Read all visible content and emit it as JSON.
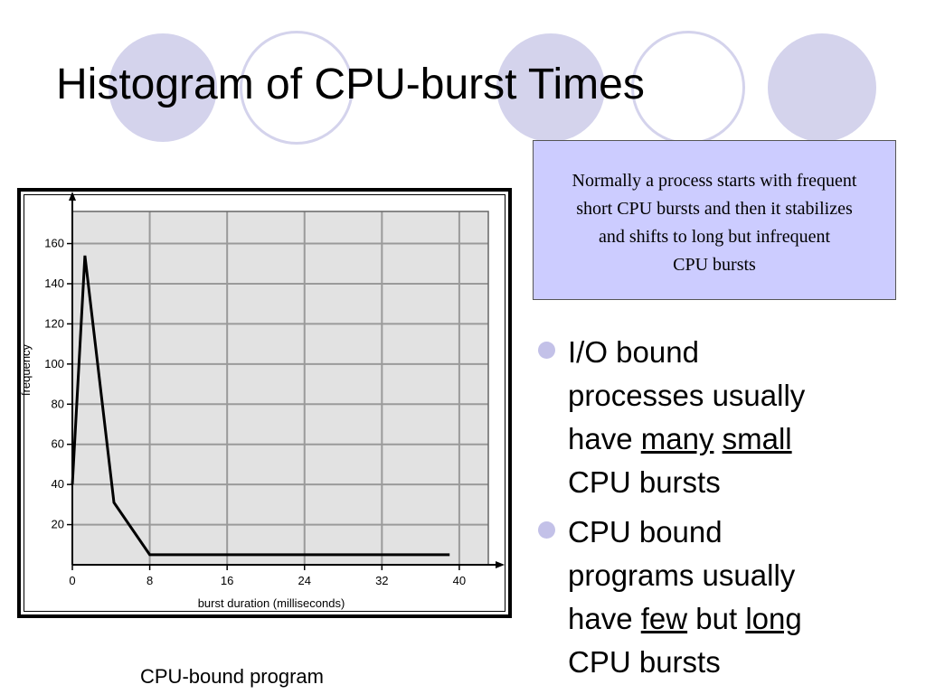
{
  "slide": {
    "title": "Histogram of CPU-burst Times",
    "caption": "CPU-bound program"
  },
  "callout": {
    "lines": [
      "Normally a process starts with frequent",
      "short CPU bursts and then it stabilizes",
      "and shifts to long but infrequent",
      "CPU bursts"
    ]
  },
  "bullets": [
    {
      "line1": "I/O bound",
      "line2": "processes usually",
      "line3_pre": "have",
      "em1": "many",
      "em2": "small",
      "line4": "CPU bursts"
    },
    {
      "line1": "CPU bound",
      "line2": "programs usually",
      "line3_pre": "have",
      "em1": "few",
      "mid": "but",
      "em2": "long",
      "line4": "CPU bursts"
    }
  ],
  "colors": {
    "decor": "#d4d3ec",
    "callout_bg": "#ccccff",
    "plot_bg": "#e2e2e2",
    "bullet": "#c3c1e8"
  },
  "chart_data": {
    "type": "line",
    "xlabel": "burst duration (milliseconds)",
    "ylabel": "frequency",
    "xlim": [
      0,
      43
    ],
    "ylim": [
      0,
      176
    ],
    "x_ticks": [
      0,
      8,
      16,
      24,
      32,
      40
    ],
    "y_ticks": [
      20,
      40,
      60,
      80,
      100,
      120,
      140,
      160
    ],
    "grid": true,
    "series": [
      {
        "points": [
          [
            0,
            40
          ],
          [
            1.3,
            154
          ],
          [
            4.3,
            31
          ],
          [
            8,
            5
          ],
          [
            39,
            5
          ]
        ]
      }
    ]
  }
}
